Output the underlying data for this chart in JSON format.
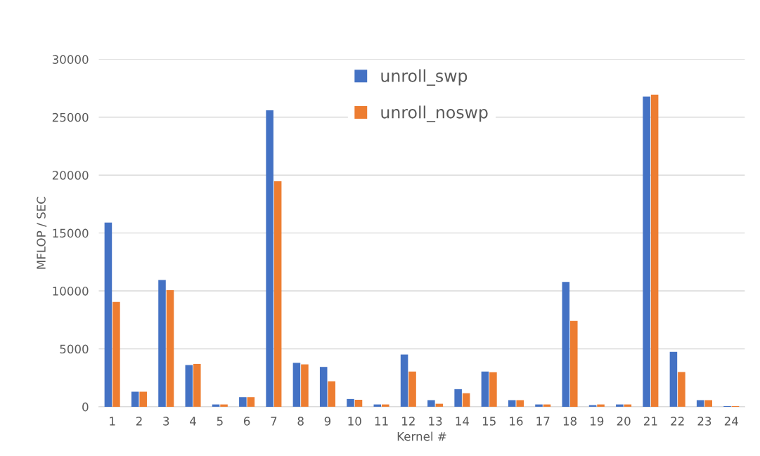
{
  "chart_data": {
    "type": "bar",
    "xlabel": "Kernel #",
    "ylabel": "MFLOP / SEC",
    "categories": [
      "1",
      "2",
      "3",
      "4",
      "5",
      "6",
      "7",
      "8",
      "9",
      "10",
      "11",
      "12",
      "13",
      "14",
      "15",
      "16",
      "17",
      "18",
      "19",
      "20",
      "21",
      "22",
      "23",
      "24"
    ],
    "series": [
      {
        "name": "unroll_swp",
        "color": "#4472c4",
        "values": [
          15900,
          1300,
          10950,
          3600,
          200,
          830,
          25600,
          3790,
          3440,
          670,
          200,
          4510,
          570,
          1520,
          3040,
          570,
          200,
          10770,
          140,
          200,
          26780,
          4740,
          570,
          60
        ]
      },
      {
        "name": "unroll_noswp",
        "color": "#ed7d31",
        "values": [
          9050,
          1300,
          10060,
          3700,
          200,
          830,
          19470,
          3660,
          2200,
          600,
          200,
          3040,
          260,
          1170,
          2980,
          570,
          200,
          7410,
          200,
          200,
          26940,
          3000,
          570,
          60
        ]
      }
    ],
    "ylim": [
      0,
      30000
    ],
    "yticks": [
      0,
      5000,
      10000,
      15000,
      20000,
      25000,
      30000
    ],
    "grid": "y",
    "legend": "top"
  }
}
